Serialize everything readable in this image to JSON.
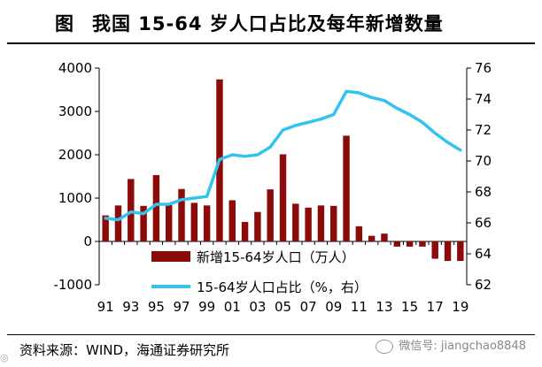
{
  "title": {
    "label": "图",
    "text": "我国 15-64 岁人口占比及每年新增数量"
  },
  "source": "资料来源：WIND，海通证券研究所",
  "watermark": "微信号: jiangchao8848",
  "corner_tag": "◎",
  "colors": {
    "bar": "#8b0b0b",
    "line": "#33c3ef",
    "axis": "#000000"
  },
  "chart_data": {
    "type": "bar+line",
    "categories": [
      "91",
      "92",
      "93",
      "94",
      "95",
      "96",
      "97",
      "98",
      "99",
      "00",
      "01",
      "02",
      "03",
      "04",
      "05",
      "06",
      "07",
      "08",
      "09",
      "10",
      "11",
      "12",
      "13",
      "14",
      "15",
      "16",
      "17",
      "18",
      "19"
    ],
    "x_tick_labels": [
      "91",
      "93",
      "95",
      "97",
      "99",
      "01",
      "03",
      "05",
      "07",
      "09",
      "11",
      "13",
      "15",
      "17",
      "19"
    ],
    "series": [
      {
        "name": "新增15-64岁人口（万人）",
        "type": "bar",
        "axis": "left",
        "values": [
          600,
          830,
          1440,
          820,
          1530,
          840,
          1210,
          890,
          830,
          3740,
          950,
          450,
          680,
          1200,
          2010,
          870,
          780,
          830,
          820,
          2440,
          350,
          130,
          180,
          -120,
          -120,
          -120,
          -400,
          -450,
          -450
        ]
      },
      {
        "name": "15-64岁人口占比（%，右）",
        "type": "line",
        "axis": "right",
        "values": [
          66.3,
          66.2,
          66.7,
          66.6,
          67.2,
          67.2,
          67.5,
          67.6,
          67.7,
          70.1,
          70.4,
          70.3,
          70.4,
          70.9,
          72.0,
          72.3,
          72.5,
          72.7,
          73.0,
          74.5,
          74.4,
          74.1,
          73.9,
          73.4,
          73.0,
          72.5,
          71.8,
          71.2,
          70.7
        ]
      }
    ],
    "y_left": {
      "ticks": [
        "-1000",
        "0",
        "1000",
        "2000",
        "3000",
        "4000"
      ],
      "min": -1000,
      "max": 4000
    },
    "y_right": {
      "ticks": [
        "62",
        "64",
        "66",
        "68",
        "70",
        "72",
        "74",
        "76"
      ],
      "min": 62,
      "max": 76
    },
    "legend": [
      {
        "label": "新增15-64岁人口（万人）"
      },
      {
        "label": "15-64岁人口占比（%，右）"
      }
    ],
    "legend_position": "bottom-center"
  }
}
